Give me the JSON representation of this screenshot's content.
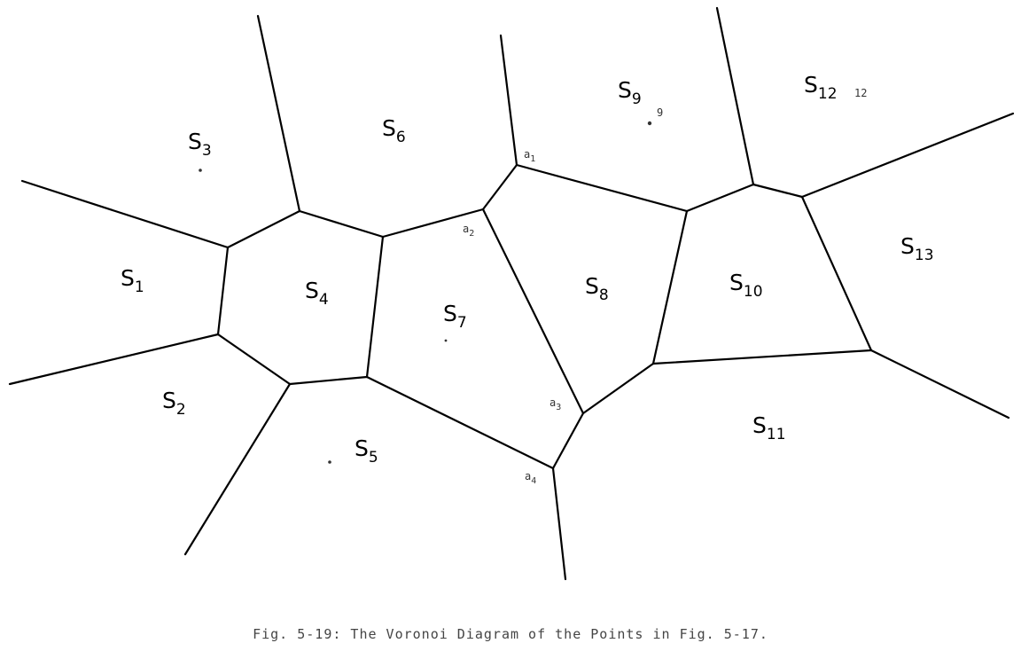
{
  "caption": "Fig. 5-19: The Voronoi Diagram of the Points in Fig. 5-17.",
  "sites": [
    {
      "base": "S",
      "sub": "1"
    },
    {
      "base": "S",
      "sub": "2"
    },
    {
      "base": "S",
      "sub": "3"
    },
    {
      "base": "S",
      "sub": "4"
    },
    {
      "base": "S",
      "sub": "5"
    },
    {
      "base": "S",
      "sub": "6"
    },
    {
      "base": "S",
      "sub": "7"
    },
    {
      "base": "S",
      "sub": "8"
    },
    {
      "base": "S",
      "sub": "9"
    },
    {
      "base": "S",
      "sub": "10"
    },
    {
      "base": "S",
      "sub": "11"
    },
    {
      "base": "S",
      "sub": "12"
    },
    {
      "base": "S",
      "sub": "13"
    }
  ],
  "vertices": [
    {
      "base": "a",
      "sub": "1"
    },
    {
      "base": "a",
      "sub": "2"
    },
    {
      "base": "a",
      "sub": "3"
    },
    {
      "base": "a",
      "sub": "4"
    }
  ],
  "point_labels": [
    "9",
    "12"
  ]
}
